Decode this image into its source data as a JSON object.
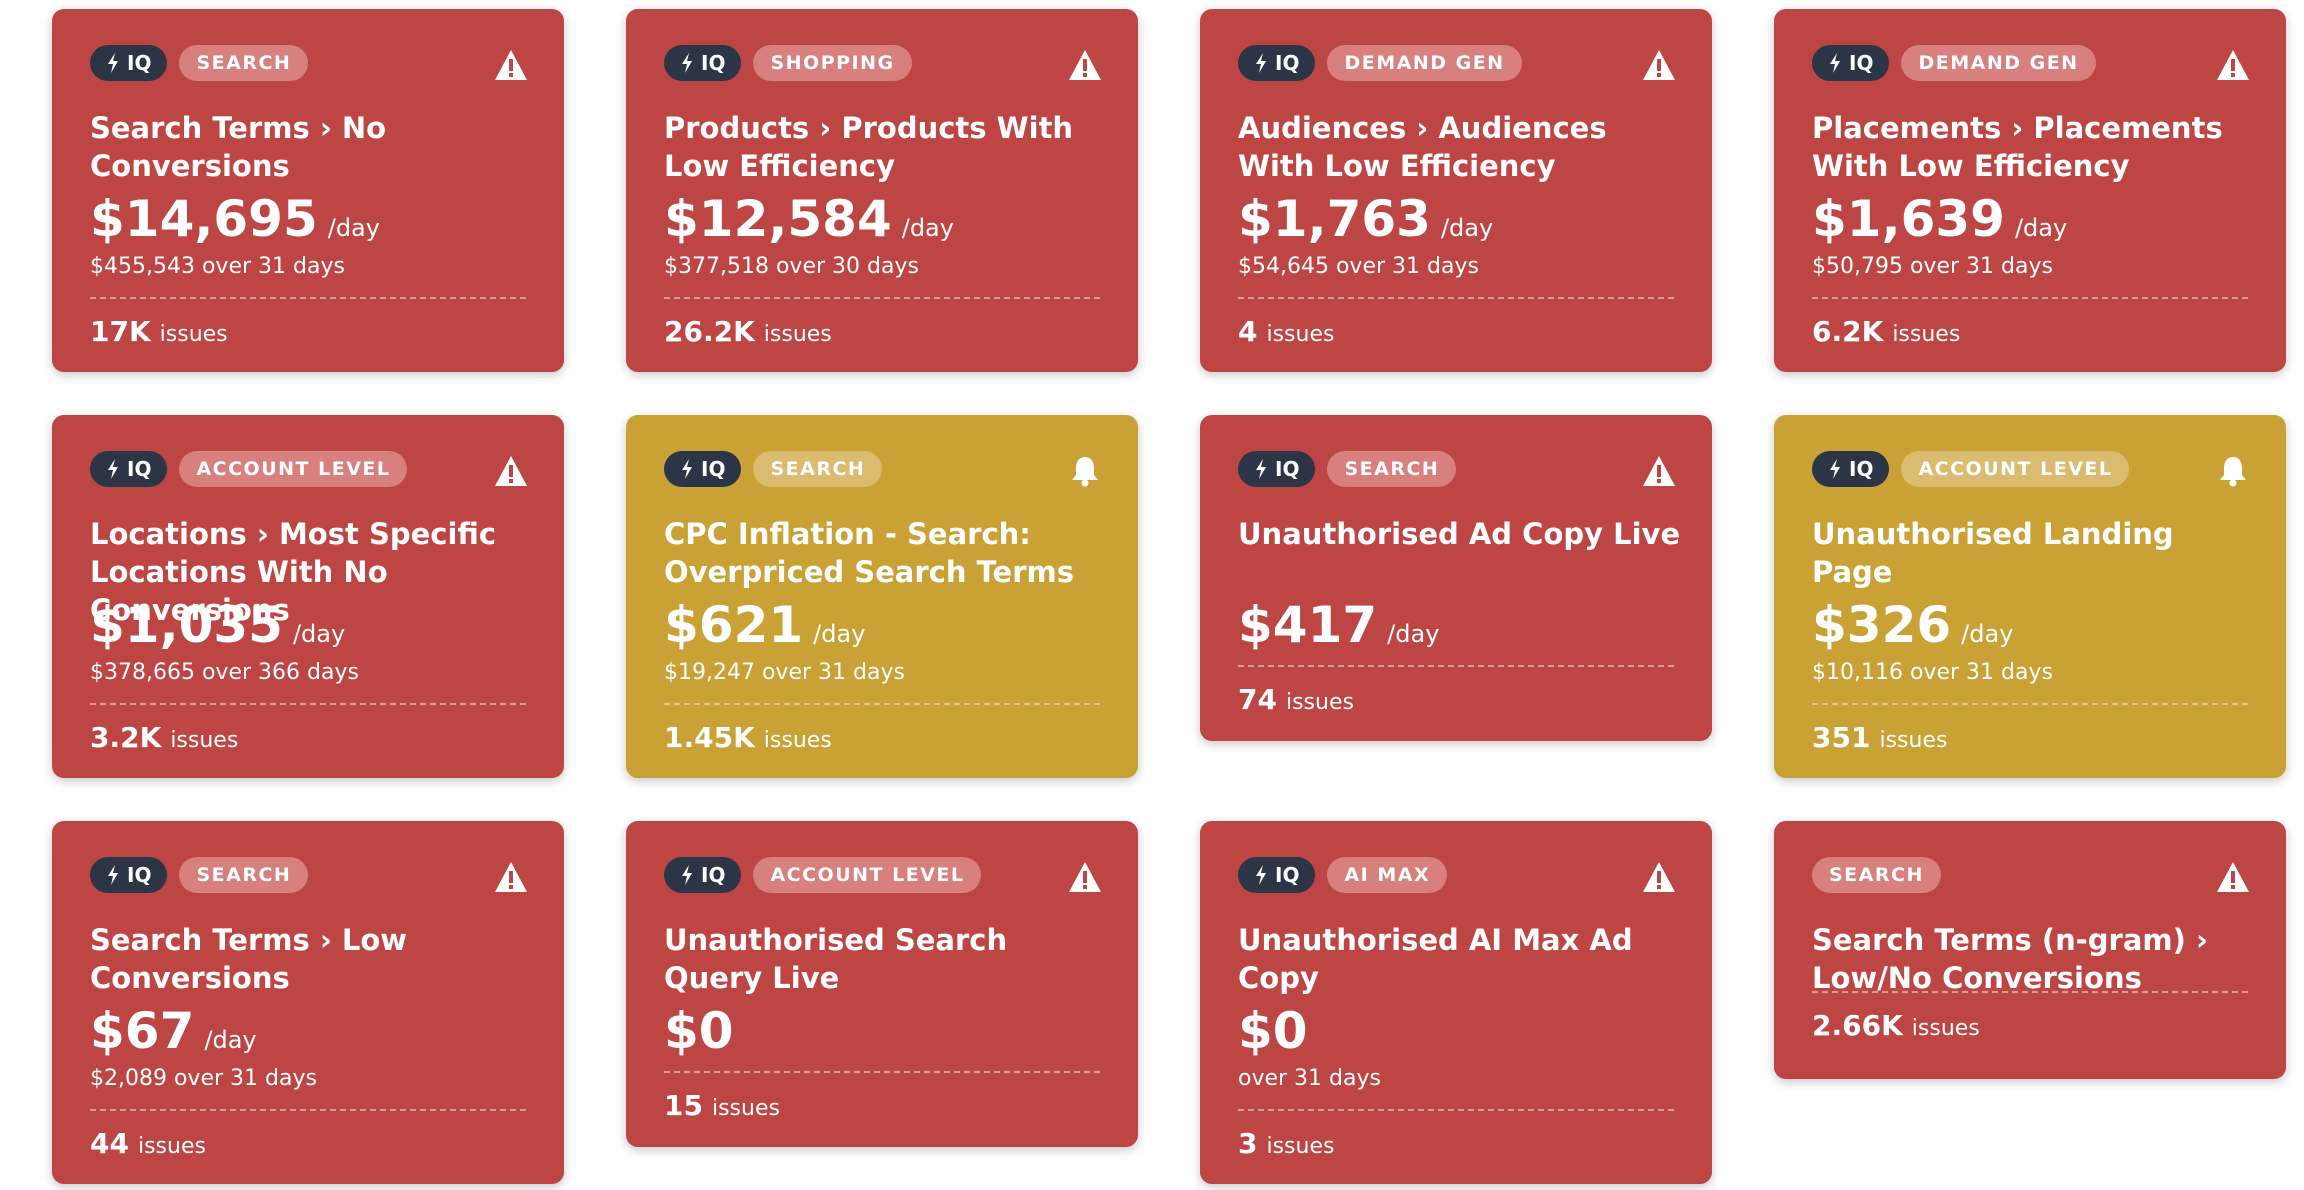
{
  "brand_badge": "IQ",
  "colors": {
    "critical": "#bd4543",
    "warning": "#c9a135",
    "iq_badge": "#2b3545"
  },
  "cards": [
    {
      "iq": true,
      "category": "SEARCH",
      "status": "warning-triangle-icon",
      "title": "Search Terms › No Conversions",
      "amount": "$14,695",
      "per_day": "/day",
      "subtotal": "$455,543 over 31 days",
      "issues_count": "17K",
      "issues_label": "issues"
    },
    {
      "iq": true,
      "category": "SHOPPING",
      "status": "warning-triangle-icon",
      "title": "Products › Products With Low Efficiency",
      "amount": "$12,584",
      "per_day": "/day",
      "subtotal": "$377,518 over 30 days",
      "issues_count": "26.2K",
      "issues_label": "issues"
    },
    {
      "iq": true,
      "category": "DEMAND GEN",
      "status": "warning-triangle-icon",
      "title": "Audiences › Audiences With Low Efficiency",
      "amount": "$1,763",
      "per_day": "/day",
      "subtotal": "$54,645 over 31 days",
      "issues_count": "4",
      "issues_label": "issues"
    },
    {
      "iq": true,
      "category": "DEMAND GEN",
      "status": "warning-triangle-icon",
      "title": "Placements › Placements With Low Efficiency",
      "amount": "$1,639",
      "per_day": "/day",
      "subtotal": "$50,795 over 31 days",
      "issues_count": "6.2K",
      "issues_label": "issues"
    },
    {
      "iq": true,
      "category": "ACCOUNT LEVEL",
      "status": "warning-triangle-icon",
      "title": "Locations › Most Specific Locations With No Conversions",
      "amount": "$1,035",
      "per_day": "/day",
      "subtotal": "$378,665 over 366 days",
      "issues_count": "3.2K",
      "issues_label": "issues"
    },
    {
      "iq": true,
      "category": "SEARCH",
      "status": "bell-icon",
      "title": "CPC Inflation - Search: Overpriced Search Terms",
      "amount": "$621",
      "per_day": "/day",
      "subtotal": "$19,247 over 31 days",
      "issues_count": "1.45K",
      "issues_label": "issues"
    },
    {
      "iq": true,
      "category": "SEARCH",
      "status": "warning-triangle-icon",
      "title": "Unauthorised Ad Copy Live",
      "amount": "$417",
      "per_day": "/day",
      "subtotal": "",
      "issues_count": "74",
      "issues_label": "issues"
    },
    {
      "iq": true,
      "category": "ACCOUNT LEVEL",
      "status": "bell-icon",
      "title": "Unauthorised Landing Page",
      "amount": "$326",
      "per_day": "/day",
      "subtotal": "$10,116 over 31 days",
      "issues_count": "351",
      "issues_label": "issues"
    },
    {
      "iq": true,
      "category": "SEARCH",
      "status": "warning-triangle-icon",
      "title": "Search Terms › Low Conversions",
      "amount": "$67",
      "per_day": "/day",
      "subtotal": "$2,089 over 31 days",
      "issues_count": "44",
      "issues_label": "issues"
    },
    {
      "iq": true,
      "category": "ACCOUNT LEVEL",
      "status": "warning-triangle-icon",
      "title": "Unauthorised Search Query Live",
      "amount": "$0",
      "per_day": "",
      "subtotal": "",
      "issues_count": "15",
      "issues_label": "issues"
    },
    {
      "iq": true,
      "category": "AI MAX",
      "status": "warning-triangle-icon",
      "title": "Unauthorised AI Max Ad Copy",
      "amount": "$0",
      "per_day": "",
      "subtotal": "over 31 days",
      "issues_count": "3",
      "issues_label": "issues"
    },
    {
      "iq": false,
      "category": "SEARCH",
      "status": "warning-triangle-icon",
      "title": "Search Terms (n-gram) › Low/No Conversions",
      "amount": "",
      "per_day": "",
      "subtotal": "",
      "issues_count": "2.66K",
      "issues_label": "issues"
    }
  ]
}
